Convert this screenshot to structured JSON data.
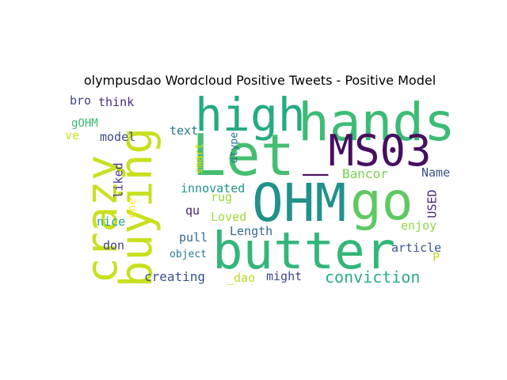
{
  "figure": {
    "title": "olympusdao Wordcloud Positive Tweets - Positive Model"
  },
  "wordcloud": {
    "words": [
      {
        "text": "hands",
        "color": "#3cbc75"
      },
      {
        "text": "high",
        "color": "#25ab82"
      },
      {
        "text": "_MS03",
        "color": "#470e61"
      },
      {
        "text": "Let",
        "color": "#45be71"
      },
      {
        "text": "buying",
        "color": "#c8e020"
      },
      {
        "text": "OHM",
        "color": "#21918c"
      },
      {
        "text": "go",
        "color": "#5ec962"
      },
      {
        "text": "butter",
        "color": "#34b679"
      },
      {
        "text": "crazy",
        "color": "#c8e020"
      },
      {
        "text": "conviction",
        "color": "#29af7f"
      },
      {
        "text": "Bancor",
        "color": "#7ad151"
      },
      {
        "text": "Name",
        "color": "#3b528b"
      },
      {
        "text": "USED",
        "color": "#482878"
      },
      {
        "text": "enjoy",
        "color": "#8fd744"
      },
      {
        "text": "article",
        "color": "#39568c"
      },
      {
        "text": "P",
        "color": "#bddf26"
      },
      {
        "text": "might",
        "color": "#3e4989"
      },
      {
        "text": "_dao",
        "color": "#b8de29"
      },
      {
        "text": "creating",
        "color": "#3b528b"
      },
      {
        "text": "object",
        "color": "#287c8e"
      },
      {
        "text": "don",
        "color": "#414487"
      },
      {
        "text": "pull",
        "color": "#30678d"
      },
      {
        "text": "Length",
        "color": "#31688e"
      },
      {
        "text": "Loved",
        "color": "#a0da39"
      },
      {
        "text": "rug",
        "color": "#9bd93c"
      },
      {
        "text": "qu",
        "color": "#482475"
      },
      {
        "text": "innovated",
        "color": "#1f958b"
      },
      {
        "text": "nice",
        "color": "#22a884"
      },
      {
        "text": "one",
        "color": "#fde725"
      },
      {
        "text": "liked",
        "color": "#443983"
      },
      {
        "text": "model",
        "color": "#3e4a89"
      },
      {
        "text": "text",
        "color": "#2c728e"
      },
      {
        "text": "smart",
        "color": "#dde318"
      },
      {
        "text": "dtype",
        "color": "#2a788e"
      },
      {
        "text": "think",
        "color": "#472c7a"
      },
      {
        "text": "bro",
        "color": "#3f4788"
      },
      {
        "text": "gOHM",
        "color": "#3aba76"
      },
      {
        "text": "ve",
        "color": "#cae11f"
      }
    ]
  }
}
